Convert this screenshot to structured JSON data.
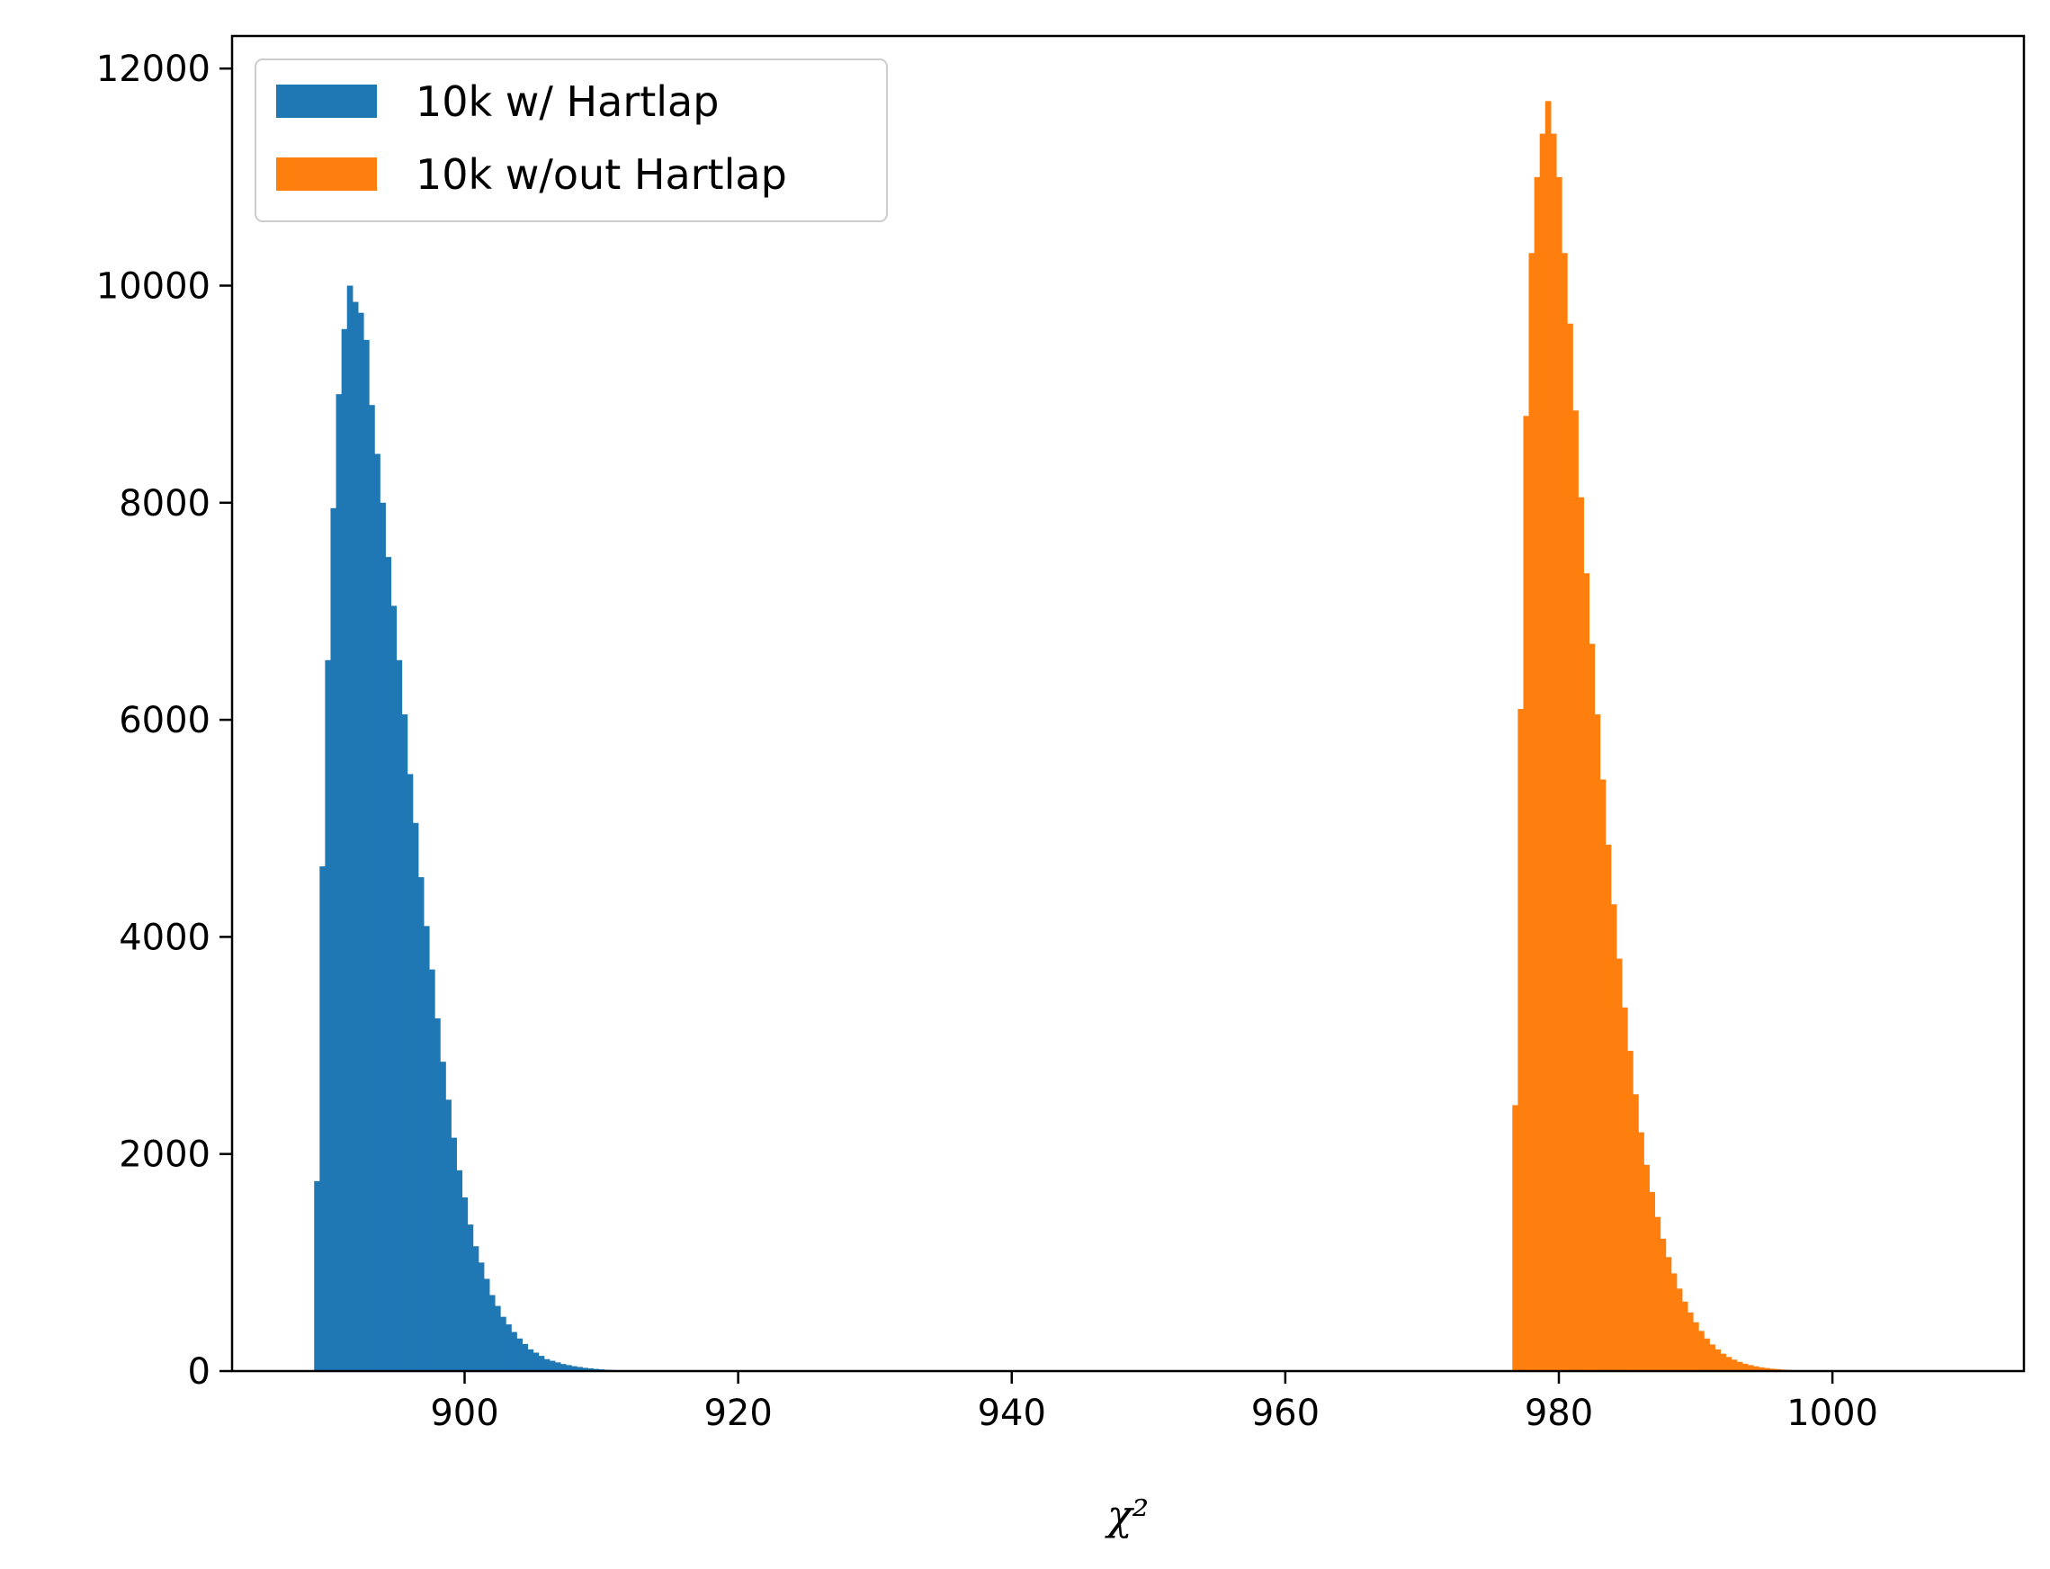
{
  "chart_data": {
    "type": "bar",
    "subtype": "histogram",
    "title": "",
    "xlabel": "χ²",
    "ylabel": "",
    "xlim": [
      883,
      1014
    ],
    "ylim": [
      0,
      12300
    ],
    "xticks": [
      900,
      920,
      940,
      960,
      980,
      1000
    ],
    "yticks": [
      0,
      2000,
      4000,
      6000,
      8000,
      10000,
      12000
    ],
    "grid": false,
    "legend_position": "top-left",
    "bin_width": 0.4,
    "series": [
      {
        "name": "10k w/ Hartlap",
        "color": "#1f77b4",
        "bin_start": 889.0,
        "values": [
          1750,
          4650,
          6550,
          7950,
          9000,
          9600,
          10000,
          9850,
          9750,
          9500,
          8900,
          8450,
          8000,
          7500,
          7050,
          6550,
          6050,
          5500,
          5050,
          4550,
          4100,
          3700,
          3250,
          2850,
          2500,
          2150,
          1850,
          1600,
          1350,
          1150,
          1000,
          850,
          700,
          600,
          500,
          430,
          360,
          300,
          250,
          200,
          170,
          140,
          110,
          95,
          80,
          65,
          55,
          45,
          38,
          30,
          25,
          20,
          16,
          12,
          10,
          8,
          6,
          5,
          4,
          3
        ]
      },
      {
        "name": "10k w/out Hartlap",
        "color": "#ff7f0e",
        "bin_start": 976.6,
        "values": [
          2450,
          6100,
          8800,
          10300,
          11000,
          11400,
          11700,
          11400,
          11000,
          10300,
          9650,
          8850,
          8050,
          7350,
          6700,
          6050,
          5450,
          4850,
          4300,
          3800,
          3350,
          2950,
          2550,
          2200,
          1900,
          1650,
          1420,
          1220,
          1050,
          900,
          760,
          640,
          540,
          450,
          370,
          300,
          245,
          200,
          160,
          130,
          105,
          85,
          68,
          55,
          44,
          35,
          28,
          22,
          18,
          14,
          11,
          9,
          7,
          5,
          4,
          3
        ]
      }
    ]
  }
}
